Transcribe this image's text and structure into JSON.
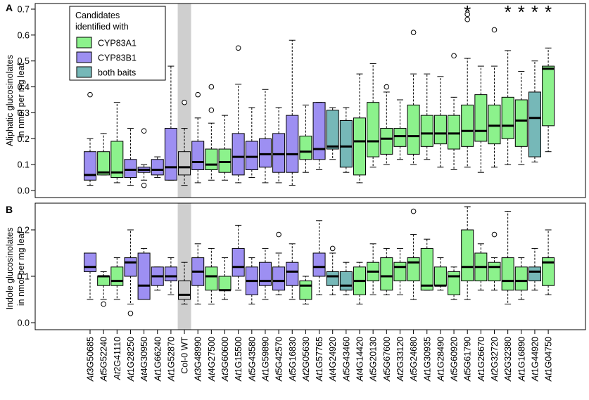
{
  "colors": {
    "CYP83A1": "#8CF28C",
    "CYP83B1": "#9D8FF2",
    "both": "#76B8B8",
    "wt": "#c8c8c8",
    "wt_band": "#cfcfcf"
  },
  "legend": {
    "title_line1": "Candidates",
    "title_line2": "identified with",
    "items": [
      {
        "label": "CYP83A1",
        "color_key": "CYP83A1"
      },
      {
        "label": "CYP83B1",
        "color_key": "CYP83B1"
      },
      {
        "label": "both baits",
        "color_key": "both"
      }
    ]
  },
  "wt_label": "Col-0 WT",
  "star_symbol": "*",
  "chart_data": [
    {
      "type": "box",
      "panel_label": "A",
      "ylabel_line1": "Aliphatic glucosinolates",
      "ylabel_line2": "in nmol per mg leaf",
      "ylim": [
        0.0,
        0.7
      ],
      "yticks": [
        0.0,
        0.1,
        0.2,
        0.3,
        0.4,
        0.5,
        0.6,
        0.7
      ],
      "ytick_labels": [
        "0.0",
        "0.1",
        "0.2",
        "0.3",
        "0.4",
        "0.5",
        "0.6",
        "0.7"
      ],
      "categories": [
        "At3G50685",
        "At5G52240",
        "At2G41110",
        "At1G28250",
        "At4G30950",
        "At1G66240",
        "At1G52870",
        "Col-0 WT",
        "At3G48990",
        "At4G27500",
        "At3G60600",
        "At1G15500",
        "At5G43580",
        "At1G59890",
        "At5G42570",
        "At5G16830",
        "At2G05630",
        "At1G57765",
        "At4G24920",
        "At5G43460",
        "At4G14420",
        "At5G20130",
        "At5G67600",
        "At2G33120",
        "At5G24680",
        "At1G30935",
        "At1G28490",
        "At5G60920",
        "At5G61790",
        "At1G26670",
        "At2G32720",
        "At2G32380",
        "At1G16890",
        "At1G44920",
        "At1G04750"
      ],
      "boxes": [
        {
          "group": "CYP83B1",
          "whislo": 0.02,
          "q1": 0.04,
          "med": 0.06,
          "q3": 0.15,
          "whishi": 0.2,
          "fliers": [
            0.37
          ]
        },
        {
          "group": "CYP83A1",
          "whislo": 0.06,
          "q1": 0.06,
          "med": 0.07,
          "q3": 0.15,
          "whishi": 0.22,
          "fliers": []
        },
        {
          "group": "CYP83A1",
          "whislo": 0.03,
          "q1": 0.05,
          "med": 0.07,
          "q3": 0.19,
          "whishi": 0.34,
          "fliers": []
        },
        {
          "group": "CYP83B1",
          "whislo": 0.02,
          "q1": 0.05,
          "med": 0.08,
          "q3": 0.12,
          "whishi": 0.24,
          "fliers": []
        },
        {
          "group": "CYP83B1",
          "whislo": 0.04,
          "q1": 0.07,
          "med": 0.08,
          "q3": 0.09,
          "whishi": 0.1,
          "fliers": [
            0.23,
            0.02
          ]
        },
        {
          "group": "CYP83B1",
          "whislo": 0.05,
          "q1": 0.06,
          "med": 0.08,
          "q3": 0.12,
          "whishi": 0.13,
          "fliers": []
        },
        {
          "group": "CYP83B1",
          "whislo": 0.04,
          "q1": 0.04,
          "med": 0.09,
          "q3": 0.24,
          "whishi": 0.48,
          "fliers": []
        },
        {
          "group": "wt",
          "whislo": 0.02,
          "q1": 0.06,
          "med": 0.09,
          "q3": 0.15,
          "whishi": 0.24,
          "fliers": [
            0.34
          ]
        },
        {
          "group": "CYP83B1",
          "whislo": 0.03,
          "q1": 0.08,
          "med": 0.11,
          "q3": 0.19,
          "whishi": 0.28,
          "fliers": [
            0.37
          ]
        },
        {
          "group": "CYP83A1",
          "whislo": 0.04,
          "q1": 0.08,
          "med": 0.1,
          "q3": 0.16,
          "whishi": 0.26,
          "fliers": [
            0.4,
            0.31
          ]
        },
        {
          "group": "CYP83A1",
          "whislo": 0.04,
          "q1": 0.07,
          "med": 0.11,
          "q3": 0.16,
          "whishi": 0.29,
          "fliers": []
        },
        {
          "group": "CYP83B1",
          "whislo": 0.03,
          "q1": 0.06,
          "med": 0.13,
          "q3": 0.22,
          "whishi": 0.41,
          "fliers": [
            0.55
          ]
        },
        {
          "group": "CYP83B1",
          "whislo": 0.05,
          "q1": 0.08,
          "med": 0.13,
          "q3": 0.19,
          "whishi": 0.32,
          "fliers": []
        },
        {
          "group": "CYP83B1",
          "whislo": 0.03,
          "q1": 0.09,
          "med": 0.14,
          "q3": 0.2,
          "whishi": 0.39,
          "fliers": []
        },
        {
          "group": "CYP83B1",
          "whislo": 0.03,
          "q1": 0.07,
          "med": 0.14,
          "q3": 0.22,
          "whishi": 0.32,
          "fliers": []
        },
        {
          "group": "CYP83B1",
          "whislo": 0.02,
          "q1": 0.07,
          "med": 0.14,
          "q3": 0.29,
          "whishi": 0.58,
          "fliers": []
        },
        {
          "group": "CYP83A1",
          "whislo": 0.07,
          "q1": 0.12,
          "med": 0.15,
          "q3": 0.21,
          "whishi": 0.33,
          "fliers": []
        },
        {
          "group": "CYP83B1",
          "whislo": 0.08,
          "q1": 0.12,
          "med": 0.16,
          "q3": 0.34,
          "whishi": 0.34,
          "fliers": []
        },
        {
          "group": "both",
          "whislo": 0.12,
          "q1": 0.16,
          "med": 0.17,
          "q3": 0.31,
          "whishi": 0.32,
          "fliers": []
        },
        {
          "group": "both",
          "whislo": 0.07,
          "q1": 0.09,
          "med": 0.17,
          "q3": 0.27,
          "whishi": 0.32,
          "fliers": []
        },
        {
          "group": "CYP83A1",
          "whislo": 0.03,
          "q1": 0.06,
          "med": 0.19,
          "q3": 0.28,
          "whishi": 0.45,
          "fliers": []
        },
        {
          "group": "CYP83A1",
          "whislo": 0.09,
          "q1": 0.13,
          "med": 0.19,
          "q3": 0.34,
          "whishi": 0.49,
          "fliers": []
        },
        {
          "group": "CYP83A1",
          "whislo": 0.1,
          "q1": 0.14,
          "med": 0.2,
          "q3": 0.24,
          "whishi": 0.38,
          "fliers": [
            0.4
          ]
        },
        {
          "group": "CYP83A1",
          "whislo": 0.12,
          "q1": 0.17,
          "med": 0.21,
          "q3": 0.24,
          "whishi": 0.35,
          "fliers": []
        },
        {
          "group": "CYP83A1",
          "whislo": 0.1,
          "q1": 0.14,
          "med": 0.21,
          "q3": 0.33,
          "whishi": 0.45,
          "fliers": [
            0.61
          ]
        },
        {
          "group": "CYP83A1",
          "whislo": 0.12,
          "q1": 0.17,
          "med": 0.22,
          "q3": 0.29,
          "whishi": 0.45,
          "fliers": []
        },
        {
          "group": "CYP83A1",
          "whislo": 0.09,
          "q1": 0.18,
          "med": 0.22,
          "q3": 0.29,
          "whishi": 0.44,
          "fliers": []
        },
        {
          "group": "CYP83A1",
          "whislo": 0.08,
          "q1": 0.16,
          "med": 0.22,
          "q3": 0.29,
          "whishi": 0.36,
          "fliers": [
            0.52
          ]
        },
        {
          "group": "CYP83A1",
          "whislo": 0.09,
          "q1": 0.17,
          "med": 0.23,
          "q3": 0.33,
          "whishi": 0.51,
          "fliers": [
            0.68,
            0.66
          ],
          "star": true
        },
        {
          "group": "CYP83A1",
          "whislo": 0.07,
          "q1": 0.19,
          "med": 0.23,
          "q3": 0.37,
          "whishi": 0.48,
          "fliers": []
        },
        {
          "group": "CYP83A1",
          "whislo": 0.09,
          "q1": 0.18,
          "med": 0.25,
          "q3": 0.33,
          "whishi": 0.48,
          "fliers": [
            0.62
          ]
        },
        {
          "group": "CYP83A1",
          "whislo": 0.1,
          "q1": 0.2,
          "med": 0.25,
          "q3": 0.36,
          "whishi": 0.54,
          "fliers": [],
          "star": true
        },
        {
          "group": "CYP83A1",
          "whislo": 0.1,
          "q1": 0.17,
          "med": 0.27,
          "q3": 0.35,
          "whishi": 0.46,
          "fliers": [],
          "star": true
        },
        {
          "group": "both",
          "whislo": 0.11,
          "q1": 0.13,
          "med": 0.28,
          "q3": 0.38,
          "whishi": 0.5,
          "fliers": [],
          "star": true
        },
        {
          "group": "CYP83A1",
          "whislo": 0.15,
          "q1": 0.25,
          "med": 0.47,
          "q3": 0.48,
          "whishi": 0.55,
          "fliers": [],
          "star": true
        }
      ]
    },
    {
      "type": "box",
      "panel_label": "B",
      "ylabel_line1": "Indole glucosinolates",
      "ylabel_line2": "in nmol per mg leaf",
      "ylim": [
        -0.01,
        0.25
      ],
      "yticks": [
        0.0,
        0.1,
        0.2
      ],
      "ytick_labels": [
        "0.0",
        "0.1",
        "0.2"
      ],
      "boxes": [
        {
          "group": "CYP83B1",
          "whislo": 0.05,
          "q1": 0.11,
          "med": 0.12,
          "q3": 0.15,
          "whishi": 0.15,
          "fliers": []
        },
        {
          "group": "CYP83A1",
          "whislo": 0.05,
          "q1": 0.08,
          "med": 0.1,
          "q3": 0.1,
          "whishi": 0.11,
          "fliers": [
            0.04
          ]
        },
        {
          "group": "CYP83A1",
          "whislo": 0.05,
          "q1": 0.08,
          "med": 0.09,
          "q3": 0.12,
          "whishi": 0.14,
          "fliers": []
        },
        {
          "group": "CYP83B1",
          "whislo": 0.04,
          "q1": 0.1,
          "med": 0.13,
          "q3": 0.14,
          "whishi": 0.2,
          "fliers": [
            0.02
          ]
        },
        {
          "group": "CYP83B1",
          "whislo": 0.05,
          "q1": 0.05,
          "med": 0.08,
          "q3": 0.15,
          "whishi": 0.16,
          "fliers": []
        },
        {
          "group": "CYP83B1",
          "whislo": 0.07,
          "q1": 0.08,
          "med": 0.1,
          "q3": 0.12,
          "whishi": 0.12,
          "fliers": []
        },
        {
          "group": "CYP83B1",
          "whislo": 0.06,
          "q1": 0.09,
          "med": 0.1,
          "q3": 0.12,
          "whishi": 0.14,
          "fliers": []
        },
        {
          "group": "wt",
          "whislo": 0.04,
          "q1": 0.05,
          "med": 0.06,
          "q3": 0.09,
          "whishi": 0.13,
          "fliers": []
        },
        {
          "group": "CYP83B1",
          "whislo": 0.04,
          "q1": 0.08,
          "med": 0.11,
          "q3": 0.14,
          "whishi": 0.17,
          "fliers": []
        },
        {
          "group": "CYP83A1",
          "whislo": 0.04,
          "q1": 0.07,
          "med": 0.1,
          "q3": 0.12,
          "whishi": 0.16,
          "fliers": []
        },
        {
          "group": "CYP83A1",
          "whislo": 0.05,
          "q1": 0.07,
          "med": 0.07,
          "q3": 0.1,
          "whishi": 0.14,
          "fliers": []
        },
        {
          "group": "CYP83B1",
          "whislo": 0.07,
          "q1": 0.1,
          "med": 0.12,
          "q3": 0.16,
          "whishi": 0.21,
          "fliers": []
        },
        {
          "group": "CYP83B1",
          "whislo": 0.04,
          "q1": 0.06,
          "med": 0.09,
          "q3": 0.12,
          "whishi": 0.14,
          "fliers": []
        },
        {
          "group": "CYP83B1",
          "whislo": 0.05,
          "q1": 0.08,
          "med": 0.09,
          "q3": 0.13,
          "whishi": 0.16,
          "fliers": []
        },
        {
          "group": "CYP83B1",
          "whislo": 0.06,
          "q1": 0.07,
          "med": 0.09,
          "q3": 0.12,
          "whishi": 0.15,
          "fliers": [
            0.19
          ]
        },
        {
          "group": "CYP83B1",
          "whislo": 0.05,
          "q1": 0.08,
          "med": 0.11,
          "q3": 0.13,
          "whishi": 0.17,
          "fliers": []
        },
        {
          "group": "CYP83A1",
          "whislo": 0.04,
          "q1": 0.05,
          "med": 0.08,
          "q3": 0.09,
          "whishi": 0.1,
          "fliers": []
        },
        {
          "group": "CYP83B1",
          "whislo": 0.06,
          "q1": 0.1,
          "med": 0.12,
          "q3": 0.15,
          "whishi": 0.22,
          "fliers": []
        },
        {
          "group": "both",
          "whislo": 0.06,
          "q1": 0.08,
          "med": 0.1,
          "q3": 0.11,
          "whishi": 0.15,
          "fliers": [
            0.16
          ]
        },
        {
          "group": "both",
          "whislo": 0.06,
          "q1": 0.07,
          "med": 0.08,
          "q3": 0.11,
          "whishi": 0.13,
          "fliers": []
        },
        {
          "group": "CYP83A1",
          "whislo": 0.04,
          "q1": 0.06,
          "med": 0.09,
          "q3": 0.12,
          "whishi": 0.13,
          "fliers": []
        },
        {
          "group": "CYP83A1",
          "whislo": 0.06,
          "q1": 0.09,
          "med": 0.11,
          "q3": 0.13,
          "whishi": 0.17,
          "fliers": []
        },
        {
          "group": "CYP83A1",
          "whislo": 0.06,
          "q1": 0.07,
          "med": 0.1,
          "q3": 0.14,
          "whishi": 0.16,
          "fliers": []
        },
        {
          "group": "CYP83A1",
          "whislo": 0.06,
          "q1": 0.09,
          "med": 0.12,
          "q3": 0.13,
          "whishi": 0.16,
          "fliers": []
        },
        {
          "group": "CYP83A1",
          "whislo": 0.05,
          "q1": 0.09,
          "med": 0.13,
          "q3": 0.14,
          "whishi": 0.19,
          "fliers": [
            0.24
          ]
        },
        {
          "group": "CYP83A1",
          "whislo": 0.07,
          "q1": 0.07,
          "med": 0.08,
          "q3": 0.16,
          "whishi": 0.18,
          "fliers": []
        },
        {
          "group": "CYP83A1",
          "whislo": 0.07,
          "q1": 0.08,
          "med": 0.08,
          "q3": 0.12,
          "whishi": 0.14,
          "fliers": []
        },
        {
          "group": "CYP83A1",
          "whislo": 0.05,
          "q1": 0.06,
          "med": 0.1,
          "q3": 0.11,
          "whishi": 0.12,
          "fliers": []
        },
        {
          "group": "CYP83A1",
          "whislo": 0.05,
          "q1": 0.09,
          "med": 0.12,
          "q3": 0.2,
          "whishi": 0.25,
          "fliers": []
        },
        {
          "group": "CYP83A1",
          "whislo": 0.07,
          "q1": 0.09,
          "med": 0.12,
          "q3": 0.15,
          "whishi": 0.17,
          "fliers": []
        },
        {
          "group": "CYP83A1",
          "whislo": 0.07,
          "q1": 0.09,
          "med": 0.12,
          "q3": 0.13,
          "whishi": 0.14,
          "fliers": [
            0.19
          ]
        },
        {
          "group": "CYP83A1",
          "whislo": 0.04,
          "q1": 0.07,
          "med": 0.09,
          "q3": 0.14,
          "whishi": 0.24,
          "fliers": []
        },
        {
          "group": "CYP83A1",
          "whislo": 0.05,
          "q1": 0.07,
          "med": 0.09,
          "q3": 0.12,
          "whishi": 0.14,
          "fliers": []
        },
        {
          "group": "both",
          "whislo": 0.07,
          "q1": 0.09,
          "med": 0.11,
          "q3": 0.12,
          "whishi": 0.16,
          "fliers": []
        },
        {
          "group": "CYP83A1",
          "whislo": 0.06,
          "q1": 0.08,
          "med": 0.13,
          "q3": 0.14,
          "whishi": 0.2,
          "fliers": []
        }
      ]
    }
  ]
}
